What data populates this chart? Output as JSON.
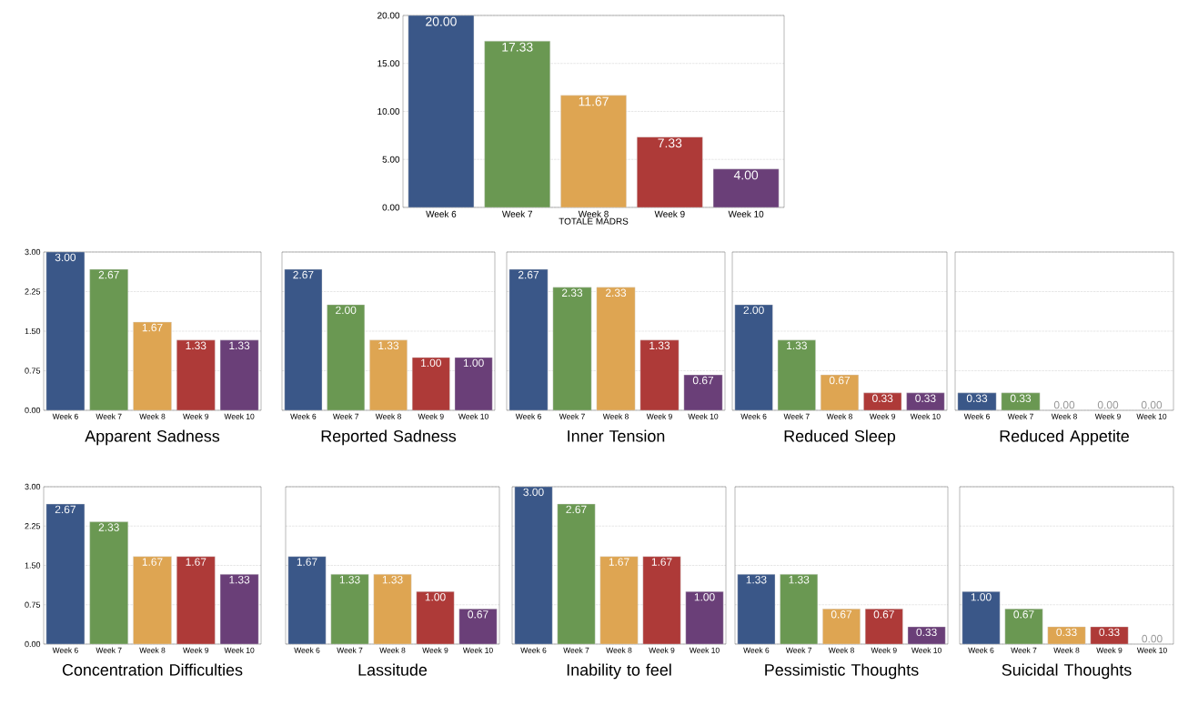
{
  "chart_data": [
    {
      "type": "bar",
      "xlabel": "TOTALE MADRS",
      "categories": [
        "Week 6",
        "Week 7",
        "Week 8",
        "Week 9",
        "Week 10"
      ],
      "values": [
        20,
        17.33,
        11.67,
        7.33,
        4
      ],
      "value_labels": [
        "20.00",
        "17.33",
        "11.67",
        "7.33",
        "4.00"
      ],
      "colors": [
        "#3a5788",
        "#6a9852",
        "#dea552",
        "#ae3a38",
        "#6a3f78"
      ],
      "ylim": [
        0,
        20
      ],
      "yticks": [
        {
          "value": 0,
          "label": "0.00"
        },
        {
          "value": 5,
          "label": "5.00"
        },
        {
          "value": 10,
          "label": "10.00"
        },
        {
          "value": 15,
          "label": "15.00"
        },
        {
          "value": 20,
          "label": "20.00"
        }
      ],
      "grid": "y"
    },
    {
      "type": "bar",
      "title": "Apparent Sadness",
      "categories": [
        "Week 6",
        "Week 7",
        "Week 8",
        "Week 9",
        "Week 10"
      ],
      "values": [
        3,
        2.67,
        1.67,
        1.33,
        1.33
      ],
      "value_labels": [
        "3.00",
        "2.67",
        "1.67",
        "1.33",
        "1.33"
      ],
      "colors": [
        "#3a5788",
        "#6a9852",
        "#dea552",
        "#ae3a38",
        "#6a3f78"
      ],
      "ylim": [
        0,
        3
      ],
      "yticks": [
        {
          "value": 0,
          "label": "0.00"
        },
        {
          "value": 0.75,
          "label": "0.75"
        },
        {
          "value": 1.5,
          "label": "1.50"
        },
        {
          "value": 2.25,
          "label": "2.25"
        },
        {
          "value": 3,
          "label": "3.00"
        }
      ],
      "grid": "y"
    },
    {
      "type": "bar",
      "title": "Reported Sadness",
      "categories": [
        "Week 6",
        "Week 7",
        "Week 8",
        "Week 9",
        "Week 10"
      ],
      "values": [
        2.67,
        2,
        1.33,
        1,
        1
      ],
      "value_labels": [
        "2.67",
        "2.00",
        "1.33",
        "1.00",
        "1.00"
      ],
      "colors": [
        "#3a5788",
        "#6a9852",
        "#dea552",
        "#ae3a38",
        "#6a3f78"
      ],
      "ylim": [
        0,
        3
      ],
      "yticks": [
        0,
        0.75,
        1.5,
        2.25,
        3
      ],
      "tick_labels": "x",
      "grid": "y"
    },
    {
      "type": "bar",
      "title": "Inner Tension",
      "categories": [
        "Week 6",
        "Week 7",
        "Week 8",
        "Week 9",
        "Week 10"
      ],
      "values": [
        2.67,
        2.33,
        2.33,
        1.33,
        0.67
      ],
      "value_labels": [
        "2.67",
        "2.33",
        "2.33",
        "1.33",
        "0.67"
      ],
      "colors": [
        "#3a5788",
        "#6a9852",
        "#dea552",
        "#ae3a38",
        "#6a3f78"
      ],
      "ylim": [
        0,
        3
      ],
      "yticks": [
        0,
        0.75,
        1.5,
        2.25,
        3
      ],
      "tick_labels": "x",
      "grid": "y"
    },
    {
      "type": "bar",
      "title": "Reduced Sleep",
      "categories": [
        "Week 6",
        "Week 7",
        "Week 8",
        "Week 9",
        "Week 10"
      ],
      "values": [
        2,
        1.33,
        0.67,
        0.33,
        0.33
      ],
      "value_labels": [
        "2.00",
        "1.33",
        "0.67",
        "0.33",
        "0.33"
      ],
      "colors": [
        "#3a5788",
        "#6a9852",
        "#dea552",
        "#ae3a38",
        "#6a3f78"
      ],
      "ylim": [
        0,
        3
      ],
      "yticks": [
        0,
        0.75,
        1.5,
        2.25,
        3
      ],
      "tick_labels": "x",
      "grid": "y"
    },
    {
      "type": "bar",
      "title": "Reduced Appetite",
      "categories": [
        "Week 6",
        "Week 7",
        "Week 8",
        "Week 9",
        "Week 10"
      ],
      "values": [
        0.33,
        0.33,
        0,
        0,
        0
      ],
      "value_labels": [
        "0.33",
        "0.33",
        "0.00",
        "0.00",
        "0.00"
      ],
      "colors": [
        "#3a5788",
        "#6a9852",
        "#dea552",
        "#ae3a38",
        "#6a3f78"
      ],
      "ylim": [
        0,
        3
      ],
      "yticks": [
        0,
        0.75,
        1.5,
        2.25,
        3
      ],
      "tick_labels": "x",
      "grid": "y"
    },
    {
      "type": "bar",
      "title": "Concentration Difficulties",
      "categories": [
        "Week 6",
        "Week 7",
        "Week 8",
        "Week 9",
        "Week 10"
      ],
      "values": [
        2.67,
        2.33,
        1.67,
        1.67,
        1.33
      ],
      "value_labels": [
        "2.67",
        "2.33",
        "1.67",
        "1.67",
        "1.33"
      ],
      "colors": [
        "#3a5788",
        "#6a9852",
        "#dea552",
        "#ae3a38",
        "#6a3f78"
      ],
      "ylim": [
        0,
        3
      ],
      "yticks": [
        {
          "value": 0,
          "label": "0.00"
        },
        {
          "value": 0.75,
          "label": "0.75"
        },
        {
          "value": 1.5,
          "label": "1.50"
        },
        {
          "value": 2.25,
          "label": "2.25"
        },
        {
          "value": 3,
          "label": "3.00"
        }
      ],
      "grid": "y"
    },
    {
      "type": "bar",
      "title": "Lassitude",
      "categories": [
        "Week 6",
        "Week 7",
        "Week 8",
        "Week 9",
        "Week 10"
      ],
      "values": [
        1.67,
        1.33,
        1.33,
        1,
        0.67
      ],
      "value_labels": [
        "1.67",
        "1.33",
        "1.33",
        "1.00",
        "0.67"
      ],
      "colors": [
        "#3a5788",
        "#6a9852",
        "#dea552",
        "#ae3a38",
        "#6a3f78"
      ],
      "ylim": [
        0,
        3
      ],
      "yticks": [
        0,
        0.75,
        1.5,
        2.25,
        3
      ],
      "tick_labels": "x",
      "grid": "y"
    },
    {
      "type": "bar",
      "title": "Inability to feel",
      "categories": [
        "Week 6",
        "Week 7",
        "Week 8",
        "Week 9",
        "Week 10"
      ],
      "values": [
        3,
        2.67,
        1.67,
        1.67,
        1
      ],
      "value_labels": [
        "3.00",
        "2.67",
        "1.67",
        "1.67",
        "1.00"
      ],
      "colors": [
        "#3a5788",
        "#6a9852",
        "#dea552",
        "#ae3a38",
        "#6a3f78"
      ],
      "ylim": [
        0,
        3
      ],
      "yticks": [
        0,
        0.75,
        1.5,
        2.25,
        3
      ],
      "tick_labels": "x",
      "grid": "y"
    },
    {
      "type": "bar",
      "title": "Pessimistic Thoughts",
      "categories": [
        "Week 6",
        "Week 7",
        "Week 8",
        "Week 9",
        "Week 10"
      ],
      "values": [
        1.33,
        1.33,
        0.67,
        0.67,
        0.33
      ],
      "value_labels": [
        "1.33",
        "1.33",
        "0.67",
        "0.67",
        "0.33"
      ],
      "colors": [
        "#3a5788",
        "#6a9852",
        "#dea552",
        "#ae3a38",
        "#6a3f78"
      ],
      "ylim": [
        0,
        3
      ],
      "yticks": [
        0,
        0.75,
        1.5,
        2.25,
        3
      ],
      "tick_labels": "x",
      "grid": "y"
    },
    {
      "type": "bar",
      "title": "Suicidal Thoughts",
      "categories": [
        "Week 6",
        "Week 7",
        "Week 8",
        "Week 9",
        "Week 10"
      ],
      "values": [
        1,
        0.67,
        0.33,
        0.33,
        0
      ],
      "value_labels": [
        "1.00",
        "0.67",
        "0.33",
        "0.33",
        "0.00"
      ],
      "colors": [
        "#3a5788",
        "#6a9852",
        "#dea552",
        "#ae3a38",
        "#6a3f78"
      ],
      "ylim": [
        0,
        3
      ],
      "yticks": [
        0,
        0.75,
        1.5,
        2.25,
        3
      ],
      "tick_labels": "x",
      "grid": "y"
    }
  ]
}
